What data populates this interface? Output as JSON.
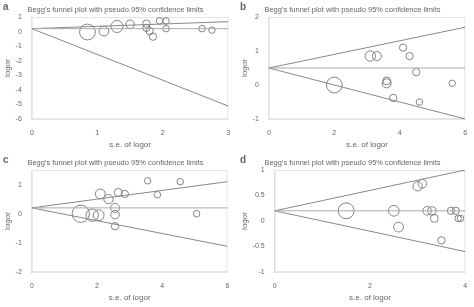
{
  "chart_data": [
    {
      "type": "scatter",
      "title": "Begg's funnel plot with pseudo 95% confidence limits",
      "annotations": [
        "a"
      ],
      "xlabel": "s.e. of logor",
      "ylabel": "logor",
      "xlim": [
        0,
        3
      ],
      "ylim": [
        -6,
        1
      ],
      "xticks": [
        0,
        1,
        2,
        3
      ],
      "yticks": [
        -6,
        -5,
        -4,
        -3,
        -2,
        -1,
        0,
        1
      ],
      "grid": false,
      "series": [
        {
          "type": "line",
          "color": "#aaaaaa",
          "line_style": "solid",
          "x": [
            0,
            3
          ],
          "values": [
            0.2,
            0.2
          ]
        },
        {
          "type": "line",
          "color": "#888888",
          "line_style": "solid",
          "x": [
            0,
            3
          ],
          "values": [
            0.2,
            0.68
          ]
        },
        {
          "type": "line",
          "color": "#888888",
          "line_style": "solid",
          "x": [
            0,
            3
          ],
          "values": [
            0.2,
            -5.11
          ]
        },
        {
          "type": "scatter",
          "color": "#666666",
          "marker": "circle",
          "x": [
            0.85,
            1.1,
            1.3,
            1.5,
            1.75,
            1.75,
            1.8,
            1.85,
            1.95,
            2.05,
            2.05,
            2.6,
            2.75
          ],
          "values": [
            -0.03,
            0.03,
            0.35,
            0.5,
            0.55,
            0.25,
            0.03,
            -0.35,
            0.73,
            0.73,
            0.2,
            0.2,
            0.1
          ],
          "sizes": [
            130,
            50,
            75,
            38,
            28,
            28,
            28,
            28,
            22,
            22,
            22,
            22,
            22
          ]
        }
      ]
    },
    {
      "type": "scatter",
      "title": "Begg's funnel plot with pseudo 95% confidence limits",
      "annotations": [
        "b"
      ],
      "xlabel": "s.e. of logor",
      "ylabel": "logor",
      "xlim": [
        0,
        6
      ],
      "ylim": [
        -1,
        2
      ],
      "xticks": [
        0,
        2,
        4,
        6
      ],
      "yticks": [
        -1,
        0,
        1,
        2
      ],
      "grid": false,
      "series": [
        {
          "type": "line",
          "color": "#aaaaaa",
          "line_style": "solid",
          "x": [
            0,
            6
          ],
          "values": [
            0.5,
            0.5
          ]
        },
        {
          "type": "line",
          "color": "#888888",
          "line_style": "solid",
          "x": [
            0,
            6
          ],
          "values": [
            0.5,
            1.7
          ]
        },
        {
          "type": "line",
          "color": "#888888",
          "line_style": "solid",
          "x": [
            0,
            6
          ],
          "values": [
            0.5,
            -1
          ]
        },
        {
          "type": "scatter",
          "color": "#666666",
          "marker": "circle",
          "x": [
            2.0,
            3.1,
            3.3,
            3.6,
            3.6,
            3.8,
            4.1,
            4.3,
            4.5,
            4.6,
            5.6
          ],
          "values": [
            0.0,
            0.85,
            0.85,
            0.05,
            0.12,
            -0.38,
            1.1,
            0.85,
            0.38,
            -0.5,
            0.05
          ],
          "sizes": [
            130,
            55,
            42,
            42,
            32,
            28,
            28,
            28,
            28,
            22,
            22
          ]
        }
      ]
    },
    {
      "type": "scatter",
      "title": "Begg's funnel plot with pseudo 95% confidence limits",
      "annotations": [
        "c"
      ],
      "xlabel": "s.e. of logor",
      "ylabel": "logor",
      "xlim": [
        0,
        6
      ],
      "ylim": [
        -2,
        1.5
      ],
      "xticks": [
        0,
        2,
        4,
        6
      ],
      "yticks": [
        -2,
        -1,
        0,
        1
      ],
      "grid": false,
      "series": [
        {
          "type": "line",
          "color": "#aaaaaa",
          "line_style": "solid",
          "x": [
            0,
            6
          ],
          "values": [
            0.2,
            0.2
          ]
        },
        {
          "type": "line",
          "color": "#888888",
          "line_style": "solid",
          "x": [
            0,
            6
          ],
          "values": [
            0.2,
            1.1
          ]
        },
        {
          "type": "line",
          "color": "#888888",
          "line_style": "solid",
          "x": [
            0,
            6
          ],
          "values": [
            0.2,
            -1.12
          ]
        },
        {
          "type": "scatter",
          "color": "#666666",
          "marker": "circle",
          "x": [
            1.5,
            1.85,
            2.05,
            2.1,
            2.35,
            2.55,
            2.55,
            2.65,
            2.85,
            3.55,
            3.85,
            4.55,
            5.05,
            2.55
          ],
          "values": [
            0.0,
            -0.05,
            -0.05,
            0.68,
            0.5,
            0.2,
            -0.03,
            0.73,
            0.68,
            1.13,
            0.65,
            1.1,
            0.0,
            -0.43
          ],
          "sizes": [
            155,
            80,
            60,
            50,
            45,
            42,
            38,
            33,
            28,
            22,
            22,
            22,
            22,
            28
          ]
        }
      ]
    },
    {
      "type": "scatter",
      "title": "Begg's funnel plot with pseudo 95% confidence limits",
      "annotations": [
        "d"
      ],
      "xlabel": "s.e. of logor",
      "ylabel": "logor",
      "xlim": [
        0,
        4
      ],
      "ylim": [
        -1,
        1
      ],
      "xticks": [
        0,
        2,
        4
      ],
      "yticks": [
        -1,
        -0.5,
        0,
        0.5,
        1
      ],
      "grid": false,
      "series": [
        {
          "type": "line",
          "color": "#aaaaaa",
          "line_style": "solid",
          "x": [
            0,
            4
          ],
          "values": [
            0.2,
            0.2
          ]
        },
        {
          "type": "line",
          "color": "#888888",
          "line_style": "solid",
          "x": [
            0,
            4
          ],
          "values": [
            0.2,
            1.0
          ]
        },
        {
          "type": "line",
          "color": "#888888",
          "line_style": "solid",
          "x": [
            0,
            4
          ],
          "values": [
            0.2,
            -0.6
          ]
        },
        {
          "type": "scatter",
          "color": "#666666",
          "marker": "circle",
          "x": [
            1.5,
            2.5,
            2.6,
            3.0,
            3.1,
            3.2,
            3.3,
            3.35,
            3.5,
            3.7,
            3.8,
            3.85,
            3.9
          ],
          "values": [
            0.2,
            0.2,
            -0.12,
            0.68,
            0.73,
            0.2,
            0.2,
            0.05,
            -0.38,
            0.2,
            0.2,
            0.05,
            0.05
          ],
          "sizes": [
            130,
            60,
            50,
            45,
            40,
            38,
            35,
            32,
            28,
            28,
            28,
            22,
            22
          ]
        }
      ]
    }
  ]
}
